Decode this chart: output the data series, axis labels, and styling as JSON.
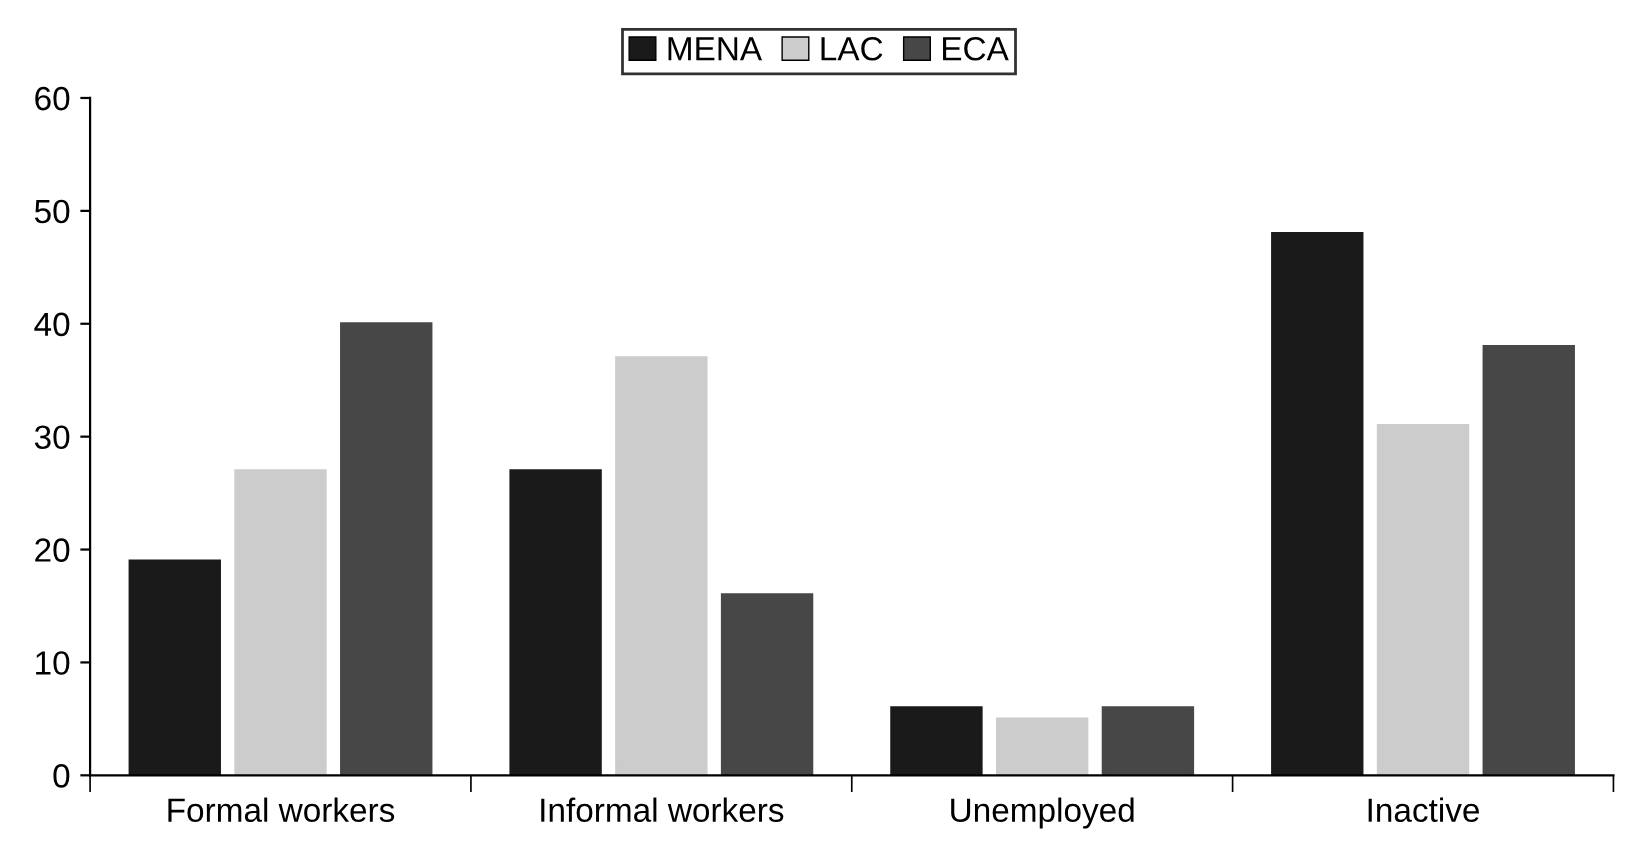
{
  "chart_data": {
    "type": "bar",
    "categories": [
      "Formal workers",
      "Informal workers",
      "Unemployed",
      "Inactive"
    ],
    "series": [
      {
        "name": "MENA",
        "color": "#1a1a1a",
        "values": [
          19,
          27,
          6,
          48
        ]
      },
      {
        "name": "LAC",
        "color": "#cccccc",
        "values": [
          27,
          37,
          5,
          31
        ]
      },
      {
        "name": "ECA",
        "color": "#474747",
        "values": [
          40,
          16,
          6,
          38
        ]
      }
    ],
    "ylim": [
      0,
      60
    ],
    "yticks": [
      0,
      10,
      20,
      30,
      40,
      50,
      60
    ],
    "grid": false,
    "legend": "top"
  }
}
